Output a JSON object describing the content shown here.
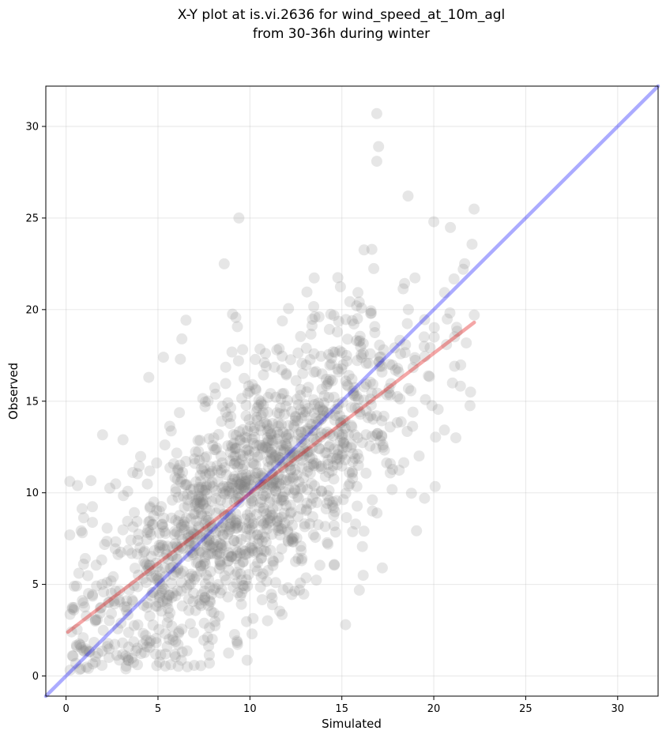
{
  "chart_data": {
    "type": "scatter",
    "title": "X-Y plot at is.vi.2636 for wind_speed_at_10m_agl",
    "subtitle": "from 30-36h during winter",
    "xlabel": "Simulated",
    "ylabel": "Observed",
    "xlim": [
      -1.1,
      32.2
    ],
    "ylim": [
      -1.1,
      32.2
    ],
    "xticks": [
      0,
      5,
      10,
      15,
      20,
      25,
      30
    ],
    "yticks": [
      0,
      5,
      10,
      15,
      20,
      25,
      30
    ],
    "grid": true,
    "point_color": "#808080",
    "point_alpha": 0.2,
    "series": [
      {
        "type": "scatter",
        "generated": true,
        "n": 1500,
        "x_range": [
          0.1,
          22.2
        ],
        "relationship": "observed ≈ 0.77 × simulated + 2.3 with large scatter"
      }
    ],
    "lines": [
      {
        "label": "one-to-one",
        "color": "#0000ff",
        "alpha": 0.33,
        "x": [
          -1.1,
          32.2
        ],
        "y": [
          -1.1,
          32.2
        ]
      },
      {
        "label": "fit",
        "color": "#e00000",
        "alpha": 0.35,
        "x": [
          0.1,
          22.2
        ],
        "y": [
          2.4,
          19.3
        ]
      }
    ],
    "highlight_points": [
      {
        "x": 16.9,
        "y": 30.7
      },
      {
        "x": 17.0,
        "y": 28.9
      },
      {
        "x": 16.9,
        "y": 28.1
      },
      {
        "x": 18.6,
        "y": 26.2
      },
      {
        "x": 9.4,
        "y": 25.0
      },
      {
        "x": 20.0,
        "y": 24.8
      },
      {
        "x": 8.6,
        "y": 22.5
      },
      {
        "x": 21.6,
        "y": 22.2
      },
      {
        "x": 0.2,
        "y": 7.7
      },
      {
        "x": 22.2,
        "y": 19.7
      },
      {
        "x": 0.8,
        "y": 0.4
      },
      {
        "x": 6.6,
        "y": 0.5
      },
      {
        "x": 6.3,
        "y": 18.4
      },
      {
        "x": 4.5,
        "y": 16.3
      },
      {
        "x": 5.3,
        "y": 17.4
      },
      {
        "x": 7.8,
        "y": 0.7
      },
      {
        "x": 15.2,
        "y": 2.8
      },
      {
        "x": 17.2,
        "y": 5.9
      },
      {
        "x": 19.5,
        "y": 9.7
      },
      {
        "x": 21.2,
        "y": 13.0
      },
      {
        "x": 22.0,
        "y": 15.5
      }
    ]
  }
}
